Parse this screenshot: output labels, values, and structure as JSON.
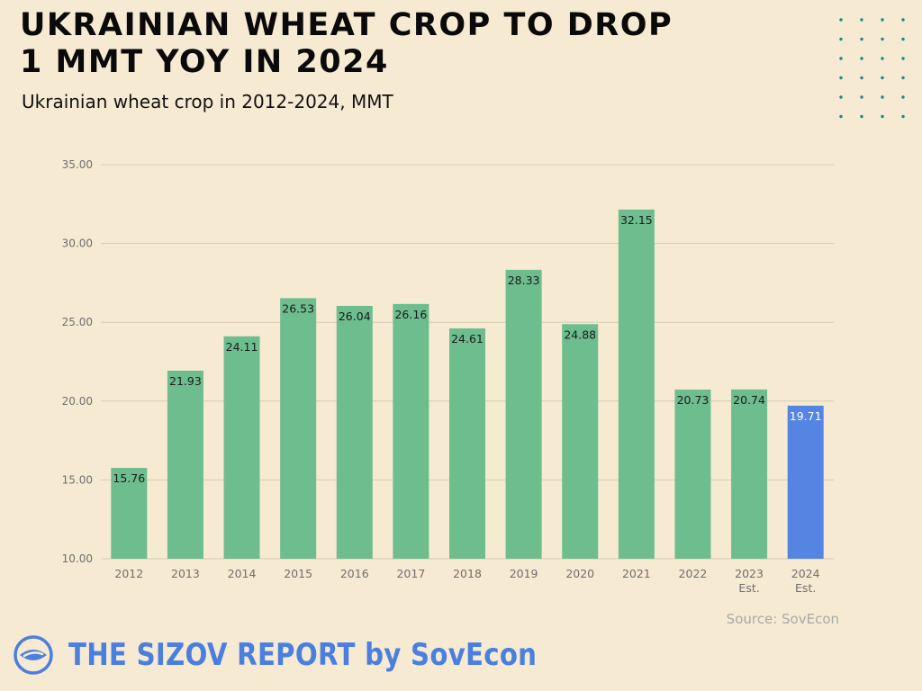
{
  "headline": {
    "line1": "UKRAINIAN WHEAT CROP TO DROP",
    "line2": "1 MMT YOY IN 2024"
  },
  "subtitle": "Ukrainian wheat crop in 2012-2024, MMT",
  "source": "Source: SovEcon",
  "footer": {
    "brand": "THE SIZOV REPORT by SovEcon",
    "logo_icon": "eye-logo-icon",
    "brand_color": "#4a7fe0"
  },
  "decoration": {
    "dot_grid_icon": "dot-grid-icon",
    "dot_color": "#1a8a8a"
  },
  "colors": {
    "background": "#f6ead2",
    "bar": "#6dbd8f",
    "highlight_bar": "#5585e2",
    "grid": "#d6cab5",
    "axis_text": "#6e6e6e"
  },
  "chart_data": {
    "type": "bar",
    "title": "",
    "xlabel": "",
    "ylabel": "",
    "categories": [
      "2012",
      "2013",
      "2014",
      "2015",
      "2016",
      "2017",
      "2018",
      "2019",
      "2020",
      "2021",
      "2022",
      "2023 Est.",
      "2024 Est."
    ],
    "values": [
      15.76,
      21.93,
      24.11,
      26.53,
      26.04,
      26.16,
      24.61,
      28.33,
      24.88,
      32.15,
      20.73,
      20.74,
      19.71
    ],
    "data_labels": [
      "15.76",
      "21.93",
      "24.11",
      "26.53",
      "26.04",
      "26.16",
      "24.61",
      "28.33",
      "24.88",
      "32.15",
      "20.73",
      "20.74",
      "19.71"
    ],
    "highlight_index": 12,
    "ylim": [
      10,
      35
    ],
    "yticks": [
      "10.00",
      "15.00",
      "20.00",
      "25.00",
      "30.00",
      "35.00"
    ],
    "grid": true,
    "legend": "none"
  }
}
